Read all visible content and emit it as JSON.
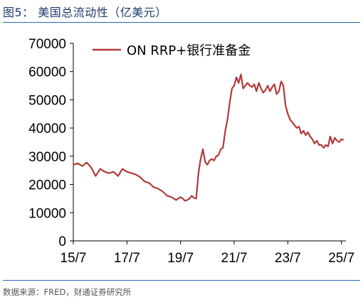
{
  "figure": {
    "title": "图5： 美国总流动性（亿美元）",
    "source": "数据来源：FRED，财通证券研究所"
  },
  "chart_data": {
    "type": "line",
    "title": "",
    "xlabel": "",
    "ylabel": "",
    "ylim": [
      0,
      70000
    ],
    "yticks": [
      "0",
      "10000",
      "20000",
      "30000",
      "40000",
      "50000",
      "60000",
      "70000"
    ],
    "xlim": [
      "2015-07",
      "2025-09"
    ],
    "xticks": [
      "15/7",
      "17/7",
      "19/7",
      "21/7",
      "23/7",
      "25/7"
    ],
    "legend_position": "top",
    "grid": false,
    "series": [
      {
        "name": "ON RRP+银行准备金",
        "color": "#b23a3a",
        "x": [
          "2015-07",
          "2015-09",
          "2015-11",
          "2016-01",
          "2016-03",
          "2016-05",
          "2016-07",
          "2016-09",
          "2016-11",
          "2017-01",
          "2017-03",
          "2017-05",
          "2017-07",
          "2017-09",
          "2017-11",
          "2018-01",
          "2018-03",
          "2018-05",
          "2018-07",
          "2018-09",
          "2018-11",
          "2019-01",
          "2019-03",
          "2019-05",
          "2019-07",
          "2019-08",
          "2019-09",
          "2019-10",
          "2019-11",
          "2019-12",
          "2020-01",
          "2020-02",
          "2020-03",
          "2020-04",
          "2020-05",
          "2020-06",
          "2020-07",
          "2020-08",
          "2020-09",
          "2020-10",
          "2020-11",
          "2020-12",
          "2021-01",
          "2021-02",
          "2021-03",
          "2021-04",
          "2021-05",
          "2021-06",
          "2021-07",
          "2021-08",
          "2021-09",
          "2021-10",
          "2021-11",
          "2021-12",
          "2022-01",
          "2022-02",
          "2022-03",
          "2022-04",
          "2022-05",
          "2022-06",
          "2022-07",
          "2022-08",
          "2022-09",
          "2022-10",
          "2022-11",
          "2022-12",
          "2023-01",
          "2023-02",
          "2023-03",
          "2023-04",
          "2023-05",
          "2023-06",
          "2023-07",
          "2023-08",
          "2023-09",
          "2023-10",
          "2023-11",
          "2023-12",
          "2024-01",
          "2024-02",
          "2024-03",
          "2024-04",
          "2024-05",
          "2024-06",
          "2024-07",
          "2024-08",
          "2024-09",
          "2024-10",
          "2024-11",
          "2024-12",
          "2025-01",
          "2025-02",
          "2025-03",
          "2025-04",
          "2025-05",
          "2025-06",
          "2025-07",
          "2025-08"
        ],
        "y": [
          27000,
          27500,
          26500,
          27800,
          26000,
          23000,
          25500,
          24500,
          24000,
          24500,
          23000,
          25500,
          24500,
          24000,
          23500,
          22500,
          21000,
          20500,
          19000,
          18500,
          17500,
          16000,
          15500,
          14500,
          15500,
          15000,
          14200,
          14500,
          15000,
          16000,
          15200,
          15000,
          24000,
          29000,
          32500,
          28000,
          27000,
          28500,
          29000,
          28500,
          30000,
          30500,
          32500,
          33000,
          39000,
          43000,
          49000,
          54000,
          55000,
          58000,
          56000,
          59000,
          54000,
          55000,
          56000,
          55000,
          54500,
          55500,
          53000,
          56000,
          54000,
          52500,
          53500,
          55000,
          53000,
          54500,
          55500,
          52000,
          53000,
          56500,
          55000,
          48000,
          45000,
          43000,
          42000,
          41000,
          40000,
          40500,
          38000,
          39000,
          37500,
          38500,
          37000,
          36000,
          34500,
          35500,
          34000,
          34000,
          33000,
          34000,
          33500,
          37000,
          34500,
          36500,
          35500,
          35000,
          36000,
          35800
        ]
      }
    ]
  }
}
